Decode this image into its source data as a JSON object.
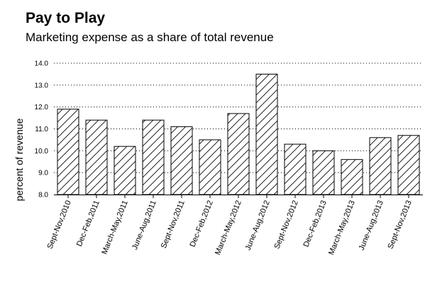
{
  "chart_data": {
    "type": "bar",
    "title": "Pay to Play",
    "subtitle": "Marketing expense as a share of total revenue",
    "xlabel": "",
    "ylabel": "percent of revenue",
    "ylim": [
      8.0,
      14.0
    ],
    "yticks": [
      "8.0",
      "9.0",
      "10.0",
      "11.0",
      "12.0",
      "13.0",
      "14.0"
    ],
    "grid": true,
    "bar_fill": "hatched",
    "bar_color": "#ffffff",
    "stroke_color": "#000000",
    "categories": [
      "Sept-Nov,2010",
      "Dec-Feb,2011",
      "March-May,2011",
      "June-Aug,2011",
      "Sept-Nov,2011",
      "Dec-Feb,2012",
      "March-May,2012",
      "June-Aug,2012",
      "Sept-Nov,2012",
      "Dec-Feb,2013",
      "March-May,2013",
      "June-Aug,2013",
      "Sept-Nov,2013"
    ],
    "values": [
      11.9,
      11.4,
      10.2,
      11.4,
      11.1,
      10.5,
      11.7,
      13.5,
      10.3,
      10.0,
      9.6,
      10.6,
      10.7
    ]
  }
}
